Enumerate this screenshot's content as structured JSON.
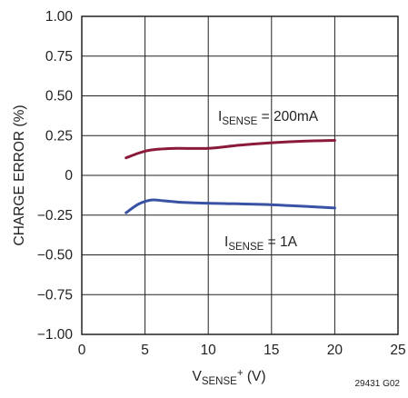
{
  "chart_data": {
    "type": "line",
    "title": "",
    "x": [
      3.5,
      5,
      10,
      15,
      20
    ],
    "xlabel": {
      "main": "V",
      "sub": "SENSE",
      "sup": "+",
      "unit": " (V)"
    },
    "ylabel": "CHARGE ERROR (%)",
    "xlim": [
      0,
      25
    ],
    "ylim": [
      -1.0,
      1.0
    ],
    "x_ticks": [
      0,
      5,
      10,
      15,
      20,
      25
    ],
    "x_tick_labels": [
      "0",
      "5",
      "10",
      "15",
      "20",
      "25"
    ],
    "y_ticks": [
      1.0,
      0.75,
      0.5,
      0.25,
      0,
      -0.25,
      -0.5,
      -0.75,
      -1.0
    ],
    "y_tick_labels": [
      "1.00",
      "0.75",
      "0.50",
      "0.25",
      "0",
      "−0.25",
      "−0.50",
      "−0.75",
      "−1.00"
    ],
    "grid": true,
    "series": [
      {
        "name": "I_SENSE = 200mA",
        "label_parts": {
          "main": "I",
          "sub": "SENSE",
          "rest": " = 200mA"
        },
        "color": "#8b1a3a",
        "points": [
          [
            3.5,
            0.11
          ],
          [
            4.5,
            0.14
          ],
          [
            5.5,
            0.16
          ],
          [
            7.5,
            0.17
          ],
          [
            10,
            0.17
          ],
          [
            12.5,
            0.19
          ],
          [
            15,
            0.205
          ],
          [
            17.5,
            0.215
          ],
          [
            20,
            0.22
          ]
        ]
      },
      {
        "name": "I_SENSE = 1A",
        "label_parts": {
          "main": "I",
          "sub": "SENSE",
          "rest": " = 1A"
        },
        "color": "#3a52a3",
        "points": [
          [
            3.5,
            -0.235
          ],
          [
            4.5,
            -0.18
          ],
          [
            5.5,
            -0.155
          ],
          [
            6.5,
            -0.16
          ],
          [
            8,
            -0.17
          ],
          [
            10,
            -0.175
          ],
          [
            15,
            -0.185
          ],
          [
            20,
            -0.205
          ]
        ]
      }
    ],
    "figure_code": "29431 G02"
  }
}
